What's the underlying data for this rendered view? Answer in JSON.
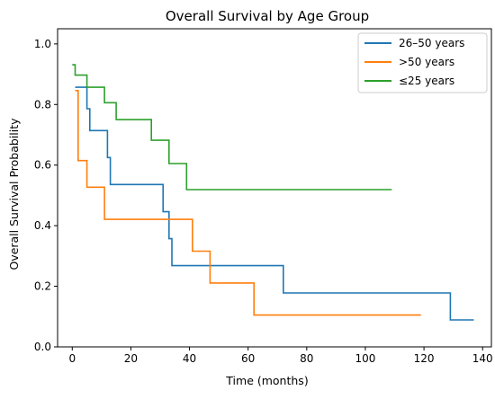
{
  "chart_data": {
    "type": "line",
    "step": "post",
    "title": "Overall Survival by Age Group",
    "xlabel": "Time (months)",
    "ylabel": "Overall Survival Probability",
    "xlim": [
      -5,
      143
    ],
    "ylim": [
      0,
      1.05
    ],
    "xticks": [
      0,
      20,
      40,
      60,
      80,
      100,
      120,
      140
    ],
    "yticks": [
      0.0,
      0.2,
      0.4,
      0.6,
      0.8,
      1.0
    ],
    "xtick_labels": [
      "0",
      "20",
      "40",
      "60",
      "80",
      "100",
      "120",
      "140"
    ],
    "ytick_labels": [
      "0.0",
      "0.2",
      "0.4",
      "0.6",
      "0.8",
      "1.0"
    ],
    "grid": false,
    "legend_position": "top-right",
    "series": [
      {
        "name": "26–50 years",
        "color": "#1f77b4",
        "x": [
          1,
          5,
          6,
          12,
          13,
          14,
          31,
          33,
          34,
          35,
          72,
          129,
          137
        ],
        "y": [
          0.857,
          0.786,
          0.714,
          0.625,
          0.536,
          0.536,
          0.446,
          0.357,
          0.268,
          0.268,
          0.178,
          0.089,
          0.089
        ]
      },
      {
        "name": ">50 years",
        "color": "#ff7f0e",
        "x": [
          1,
          2,
          5,
          11,
          41,
          47,
          62,
          119
        ],
        "y": [
          0.846,
          0.615,
          0.527,
          0.421,
          0.316,
          0.211,
          0.105,
          0.105
        ]
      },
      {
        "name": "≤25 years",
        "color": "#2ca02c",
        "x": [
          0,
          1,
          5,
          11,
          15,
          27,
          33,
          39,
          109
        ],
        "y": [
          0.931,
          0.897,
          0.857,
          0.806,
          0.75,
          0.682,
          0.605,
          0.519,
          0.519
        ]
      }
    ]
  }
}
